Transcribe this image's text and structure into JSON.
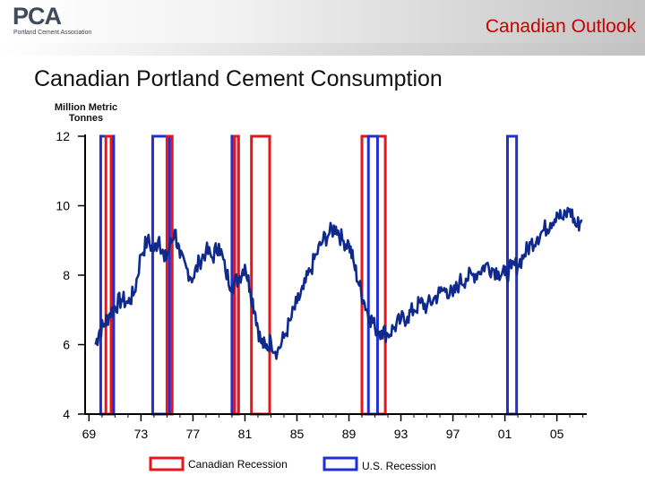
{
  "header": {
    "logo_text": "PCA",
    "logo_subtitle": "Portland Cement Association",
    "section_title": "Canadian Outlook"
  },
  "chart_data": {
    "type": "line",
    "title": "Canadian Portland Cement Consumption",
    "ylabel": "Million Metric Tonnes",
    "xlabel": "",
    "ylim": [
      4,
      12
    ],
    "xlim": [
      1968.7,
      2007.3
    ],
    "yticks": [
      12,
      10,
      8,
      6,
      4
    ],
    "xticks": [
      "69",
      "73",
      "77",
      "81",
      "85",
      "89",
      "93",
      "97",
      "01",
      "05"
    ],
    "xtick_years": [
      1969,
      1973,
      1977,
      1981,
      1985,
      1989,
      1993,
      1997,
      2001,
      2005
    ],
    "series": [
      {
        "name": "Canadian Portland Cement Consumption",
        "color": "#0f2a8c",
        "x": [
          1969.5,
          1969.8,
          1970.2,
          1970.6,
          1971.0,
          1971.5,
          1972.0,
          1972.5,
          1973.0,
          1973.5,
          1974.0,
          1974.4,
          1974.8,
          1975.2,
          1975.6,
          1976.0,
          1976.5,
          1977.0,
          1977.5,
          1978.0,
          1978.5,
          1979.0,
          1979.5,
          1980.0,
          1980.5,
          1981.0,
          1981.4,
          1981.8,
          1982.2,
          1982.6,
          1983.0,
          1983.5,
          1984.0,
          1984.5,
          1985.0,
          1985.5,
          1986.0,
          1986.5,
          1987.0,
          1987.5,
          1988.0,
          1988.5,
          1989.0,
          1989.4,
          1989.8,
          1990.2,
          1990.6,
          1991.0,
          1991.5,
          1992.0,
          1992.5,
          1993.0,
          1993.5,
          1994.0,
          1994.5,
          1995.0,
          1995.5,
          1996.0,
          1996.5,
          1997.0,
          1997.5,
          1998.0,
          1998.5,
          1999.0,
          1999.5,
          2000.0,
          2000.5,
          2001.0,
          2001.5,
          2002.0,
          2002.5,
          2003.0,
          2003.5,
          2004.0,
          2004.5,
          2005.0,
          2005.5,
          2006.0,
          2006.5,
          2006.9
        ],
        "values": [
          6.0,
          6.4,
          6.6,
          6.9,
          7.1,
          7.3,
          7.2,
          7.5,
          8.6,
          9.0,
          8.7,
          9.1,
          8.4,
          8.8,
          9.3,
          8.5,
          8.2,
          7.9,
          8.4,
          8.7,
          8.5,
          8.9,
          8.1,
          7.7,
          7.9,
          8.3,
          7.6,
          6.9,
          6.1,
          5.9,
          6.1,
          5.8,
          6.2,
          6.7,
          7.2,
          7.6,
          8.1,
          8.6,
          9.0,
          9.2,
          9.4,
          9.0,
          8.9,
          8.3,
          7.7,
          7.2,
          6.8,
          6.5,
          6.4,
          6.3,
          6.5,
          6.7,
          6.8,
          7.0,
          7.2,
          7.1,
          7.3,
          7.5,
          7.6,
          7.4,
          7.8,
          7.9,
          8.0,
          8.1,
          8.3,
          8.2,
          8.1,
          8.0,
          8.2,
          8.3,
          8.6,
          8.9,
          9.1,
          9.3,
          9.5,
          9.8,
          9.6,
          9.9,
          9.4,
          9.6
        ]
      }
    ],
    "recessions": [
      {
        "type": "US",
        "start": 1969.9,
        "end": 1970.9
      },
      {
        "type": "Canada",
        "start": 1970.3,
        "end": 1970.7
      },
      {
        "type": "US",
        "start": 1973.9,
        "end": 1975.2
      },
      {
        "type": "Canada",
        "start": 1975.0,
        "end": 1975.4
      },
      {
        "type": "US",
        "start": 1980.0,
        "end": 1980.5
      },
      {
        "type": "Canada",
        "start": 1980.2,
        "end": 1980.5
      },
      {
        "type": "Canada",
        "start": 1981.5,
        "end": 1982.9
      },
      {
        "type": "Canada",
        "start": 1990.0,
        "end": 1991.8
      },
      {
        "type": "US",
        "start": 1990.5,
        "end": 1991.2
      },
      {
        "type": "US",
        "start": 2001.2,
        "end": 2001.9
      }
    ],
    "legend": [
      {
        "label": "Canadian Recession",
        "color": "#e8151b"
      },
      {
        "label": "U.S. Recession",
        "color": "#1f2fd1"
      }
    ]
  }
}
